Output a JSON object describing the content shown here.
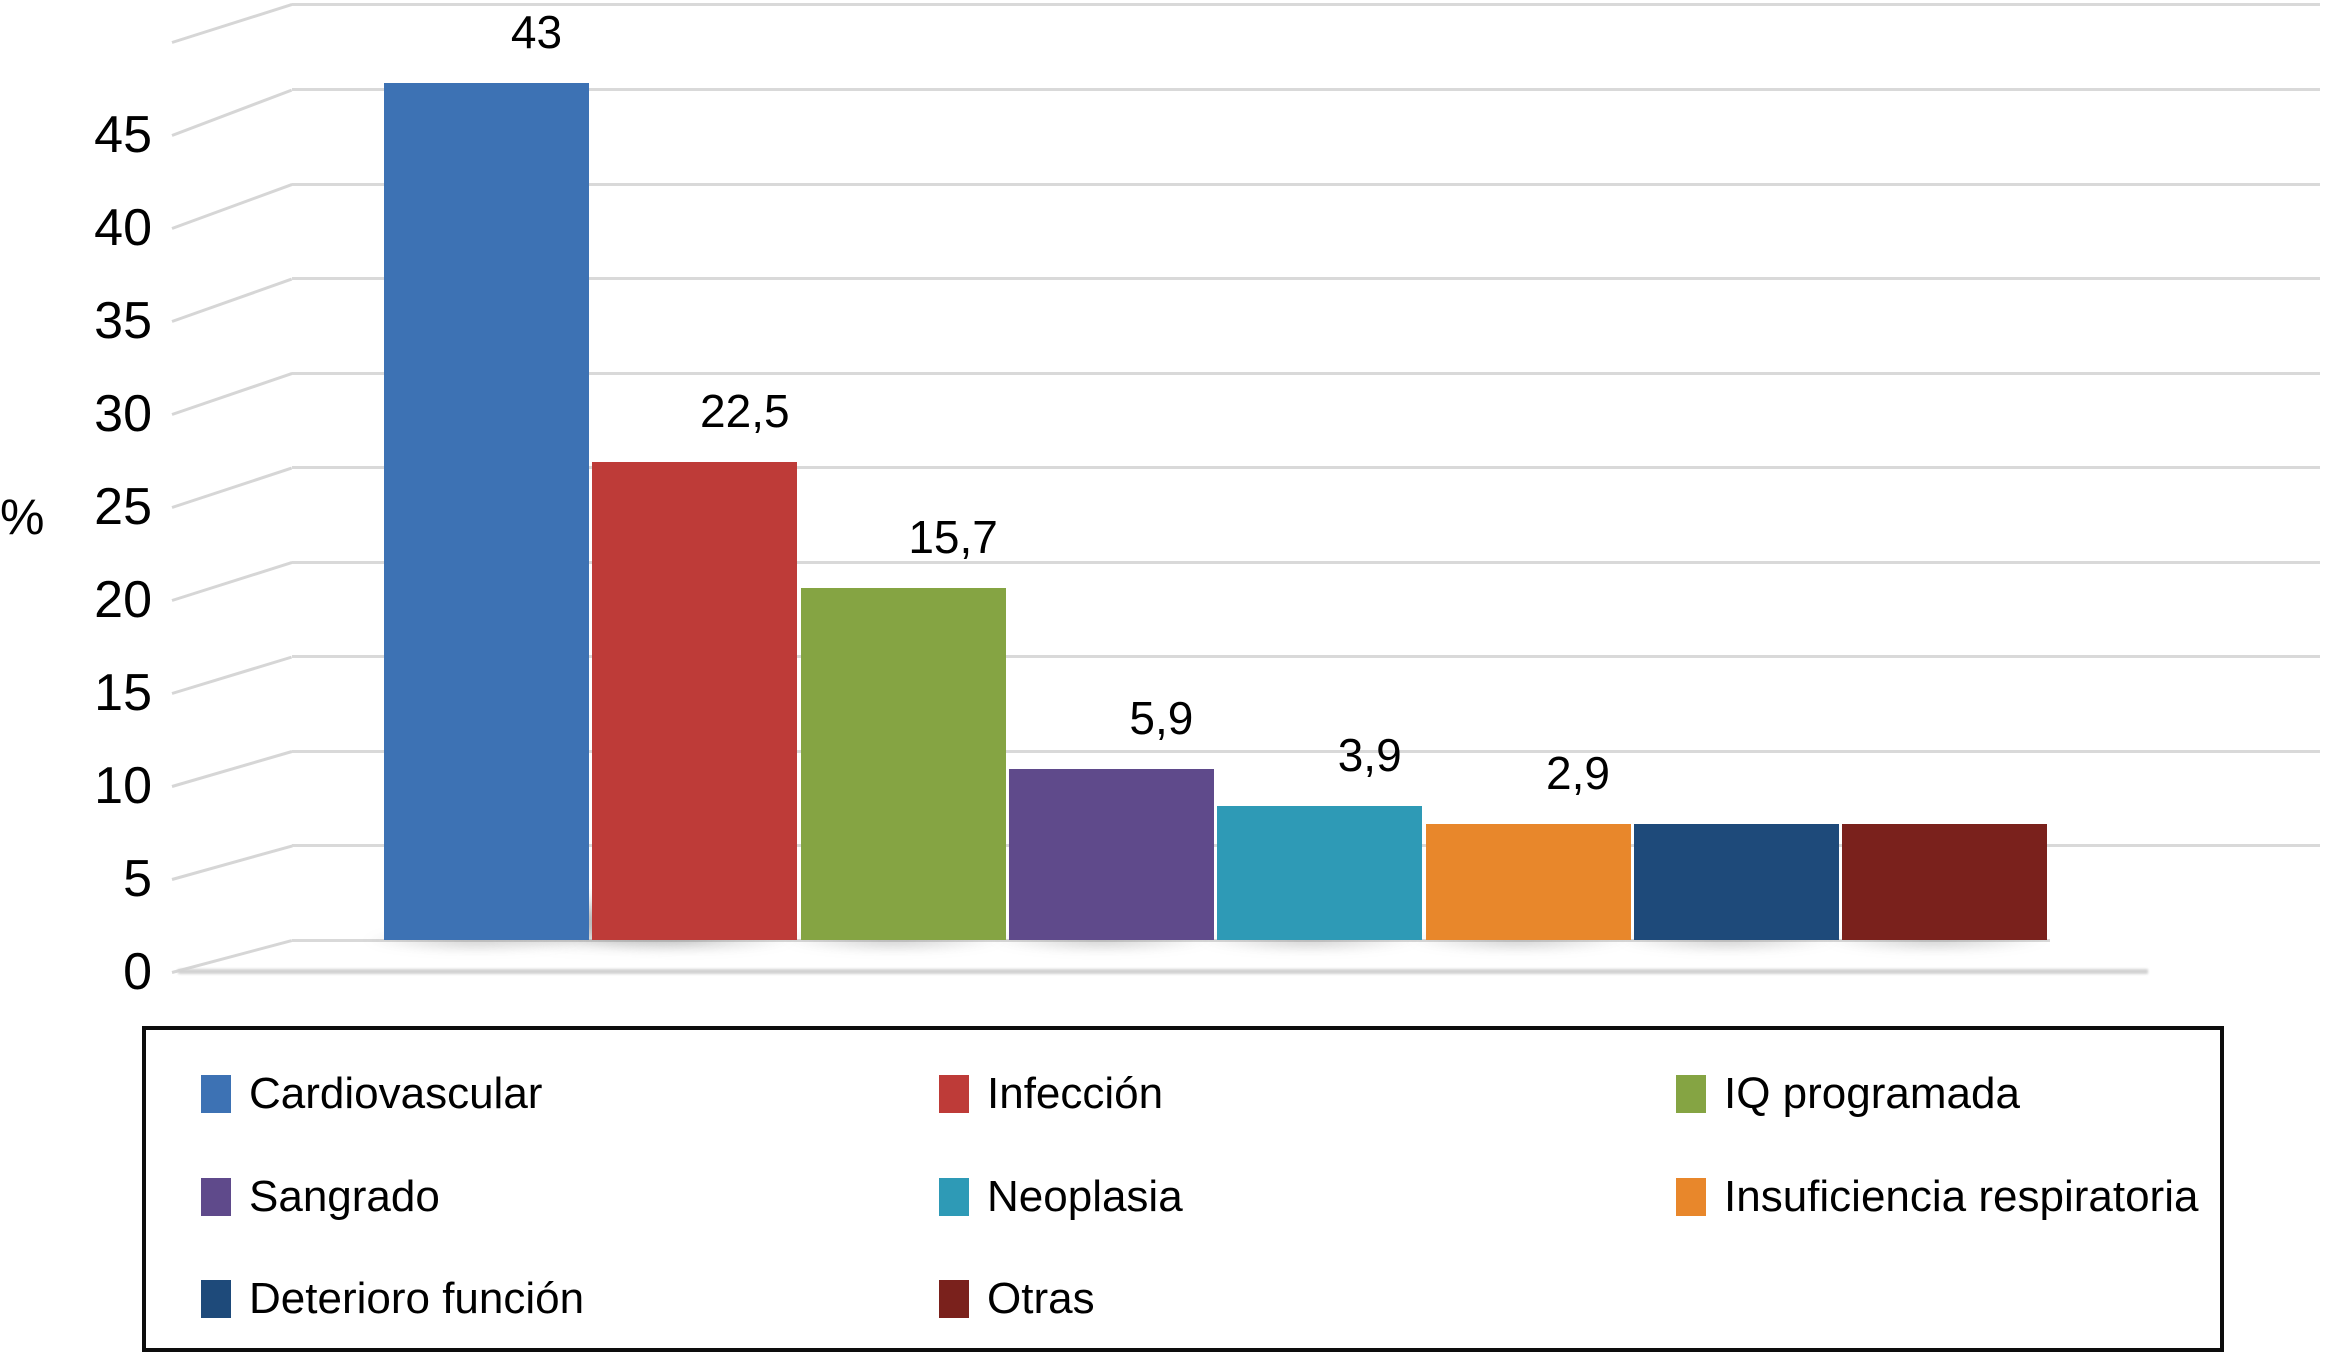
{
  "chart_data": {
    "type": "bar",
    "title": "",
    "ylabel": "%",
    "categories": [
      "Cardiovascular",
      "Infección",
      "IQ programada",
      "Sangrado",
      "Neoplasia",
      "Insuficiencia respiratoria",
      "Deterioro función",
      "Otras"
    ],
    "values": [
      43,
      22.5,
      15.7,
      5.9,
      3.9,
      2.9,
      2.9,
      2.9
    ],
    "data_labels": [
      "43",
      "22,5",
      "15,7",
      "5,9",
      "3,9",
      "2,9",
      "",
      ""
    ],
    "unlabeled_bars_note": "last two bars have no printed data label; values estimated from bar heights (same height as the 2,9 bar)",
    "colors": [
      "#3D72B4",
      "#BE3B38",
      "#85A443",
      "#5F4A8B",
      "#2E9AB6",
      "#E8872B",
      "#1E4A7A",
      "#7A211C"
    ],
    "y_ticks": [
      0,
      5,
      10,
      15,
      20,
      25,
      30,
      35,
      40,
      45
    ],
    "y_tick_labels": [
      "0",
      "5",
      "10",
      "15",
      "20",
      "25",
      "30",
      "35",
      "40",
      "45"
    ],
    "ylim": [
      0,
      45
    ],
    "grid": true,
    "grid_color": "#d9d9d9",
    "background": "#ffffff",
    "style": "3d-perspective-column",
    "legend": {
      "position": "bottom",
      "columns": 3,
      "border_color": "#000000",
      "items": [
        {
          "label": "Cardiovascular",
          "color": "#3D72B4"
        },
        {
          "label": "Infección",
          "color": "#BE3B38"
        },
        {
          "label": "IQ programada",
          "color": "#85A443"
        },
        {
          "label": "Sangrado",
          "color": "#5F4A8B"
        },
        {
          "label": "Neoplasia",
          "color": "#2E9AB6"
        },
        {
          "label": "Insuficiencia respiratoria",
          "color": "#E8872B"
        },
        {
          "label": "Deterioro función",
          "color": "#1E4A7A"
        },
        {
          "label": "Otras",
          "color": "#7A211C"
        }
      ]
    }
  }
}
